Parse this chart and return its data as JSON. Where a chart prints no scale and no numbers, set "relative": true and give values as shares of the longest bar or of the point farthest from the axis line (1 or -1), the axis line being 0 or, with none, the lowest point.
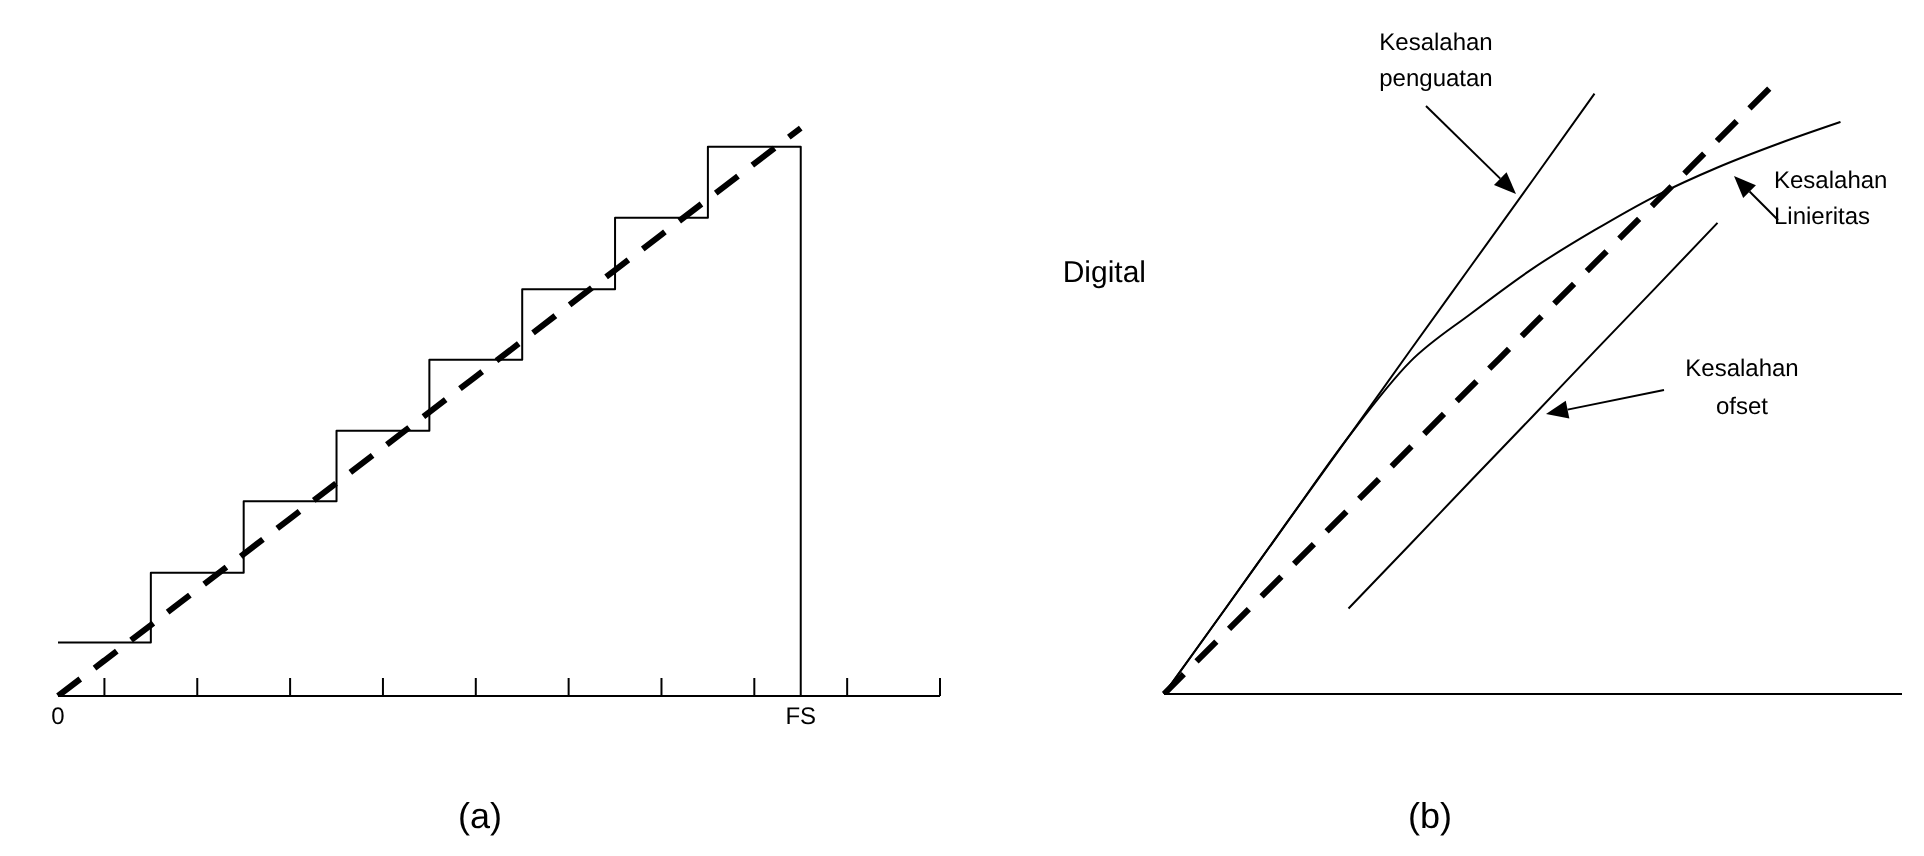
{
  "chart_data": [
    {
      "type": "line",
      "relative": true,
      "tick_labels": "x",
      "categories": [
        "0",
        null,
        null,
        null,
        null,
        null,
        null,
        null,
        null,
        null,
        null,
        null,
        null,
        null,
        null,
        null,
        "FS",
        null,
        null,
        null
      ],
      "series": [
        {
          "type": "step",
          "color": "#000000",
          "values": [
            0.094,
            0.094,
            0.217,
            0.217,
            0.343,
            0.343,
            0.467,
            0.467,
            0.592,
            0.592,
            0.716,
            0.716,
            0.842,
            0.842,
            0.967,
            0.967,
            0,
            null,
            null,
            null
          ]
        },
        {
          "type": "line",
          "color": "#000000",
          "line_style": "dashed",
          "values": [
            0,
            0.0625,
            0.125,
            0.1875,
            0.25,
            0.3125,
            0.375,
            0.4375,
            0.5,
            0.5625,
            0.625,
            0.6875,
            0.75,
            0.8125,
            0.875,
            0.9375,
            1,
            null,
            null,
            null
          ]
        }
      ],
      "annotations": [
        "(a)"
      ]
    },
    {
      "type": "line",
      "relative": true,
      "ylabel": "Digital",
      "tick_labels": false,
      "categories": [
        null,
        null,
        null,
        null,
        null,
        null,
        null,
        null,
        null,
        null,
        null,
        null,
        null
      ],
      "series": [
        {
          "type": "line",
          "color": "#000000",
          "values": [
            0,
            0.139,
            0.279,
            0.418,
            0.558,
            0.697,
            0.836,
            0.976,
            null,
            null,
            null,
            null,
            null
          ]
        },
        {
          "type": "line",
          "color": "#000000",
          "values": [
            0,
            0.139,
            0.279,
            0.418,
            0.54,
            0.619,
            0.692,
            0.754,
            0.81,
            0.856,
            0.895,
            0.93,
            null
          ]
        },
        {
          "type": "line",
          "color": "#000000",
          "values": [
            null,
            null,
            null,
            0.139,
            0.243,
            0.348,
            0.452,
            0.557,
            0.661,
            0.766,
            null,
            null,
            null
          ]
        },
        {
          "type": "line",
          "color": "#000000",
          "line_style": "dashed",
          "values": [
            0,
            0.1,
            0.2,
            0.3,
            0.4,
            0.5,
            0.6,
            0.7,
            0.8,
            0.9,
            1,
            null,
            null
          ]
        }
      ],
      "annotations": [
        "Kesalahan penguatan",
        "Kesalahan Linieritas",
        "Kesalahan ofset",
        "(b)"
      ]
    }
  ]
}
